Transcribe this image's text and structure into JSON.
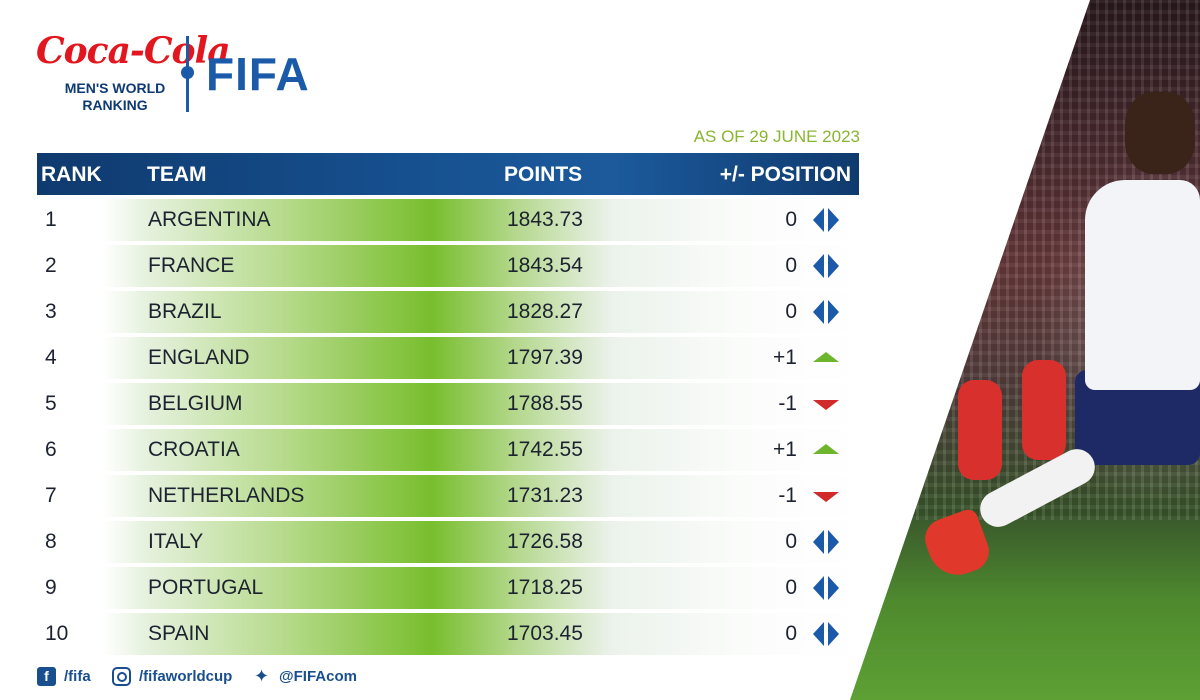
{
  "brand": {
    "wordmark": "Coca-Cola",
    "subtitle_line1": "MEN'S WORLD",
    "subtitle_line2": "RANKING",
    "org": "FIFA"
  },
  "as_of": "AS OF 29 JUNE 2023",
  "table": {
    "headers": {
      "rank": "RANK",
      "team": "TEAM",
      "points": "POINTS",
      "position": "+/- POSITION"
    },
    "rows": [
      {
        "rank": "1",
        "team": "ARGENTINA",
        "points": "1843.73",
        "change": "0",
        "trend": "same"
      },
      {
        "rank": "2",
        "team": "FRANCE",
        "points": "1843.54",
        "change": "0",
        "trend": "same"
      },
      {
        "rank": "3",
        "team": "BRAZIL",
        "points": "1828.27",
        "change": "0",
        "trend": "same"
      },
      {
        "rank": "4",
        "team": "ENGLAND",
        "points": "1797.39",
        "change": "+1",
        "trend": "up"
      },
      {
        "rank": "5",
        "team": "BELGIUM",
        "points": "1788.55",
        "change": "-1",
        "trend": "down"
      },
      {
        "rank": "6",
        "team": "CROATIA",
        "points": "1742.55",
        "change": "+1",
        "trend": "up"
      },
      {
        "rank": "7",
        "team": "NETHERLANDS",
        "points": "1731.23",
        "change": "-1",
        "trend": "down"
      },
      {
        "rank": "8",
        "team": "ITALY",
        "points": "1726.58",
        "change": "0",
        "trend": "same"
      },
      {
        "rank": "9",
        "team": "PORTUGAL",
        "points": "1718.25",
        "change": "0",
        "trend": "same"
      },
      {
        "rank": "10",
        "team": "SPAIN",
        "points": "1703.45",
        "change": "0",
        "trend": "same"
      }
    ]
  },
  "social": {
    "facebook": "/fifa",
    "instagram": "/fifaworldcup",
    "twitter": "@FIFAcom"
  },
  "icons": {
    "same": "left-right-arrows-icon",
    "up": "up-triangle-icon",
    "down": "down-triangle-icon",
    "facebook": "facebook-icon",
    "instagram": "instagram-icon",
    "twitter": "twitter-icon"
  },
  "colors": {
    "fifa_blue": "#1a5aa8",
    "header_navy": "#0f3a6e",
    "accent_green": "#8ab531",
    "up_green": "#6cb52c",
    "down_red": "#d12a2a",
    "coca_cola_red": "#e2161e"
  }
}
